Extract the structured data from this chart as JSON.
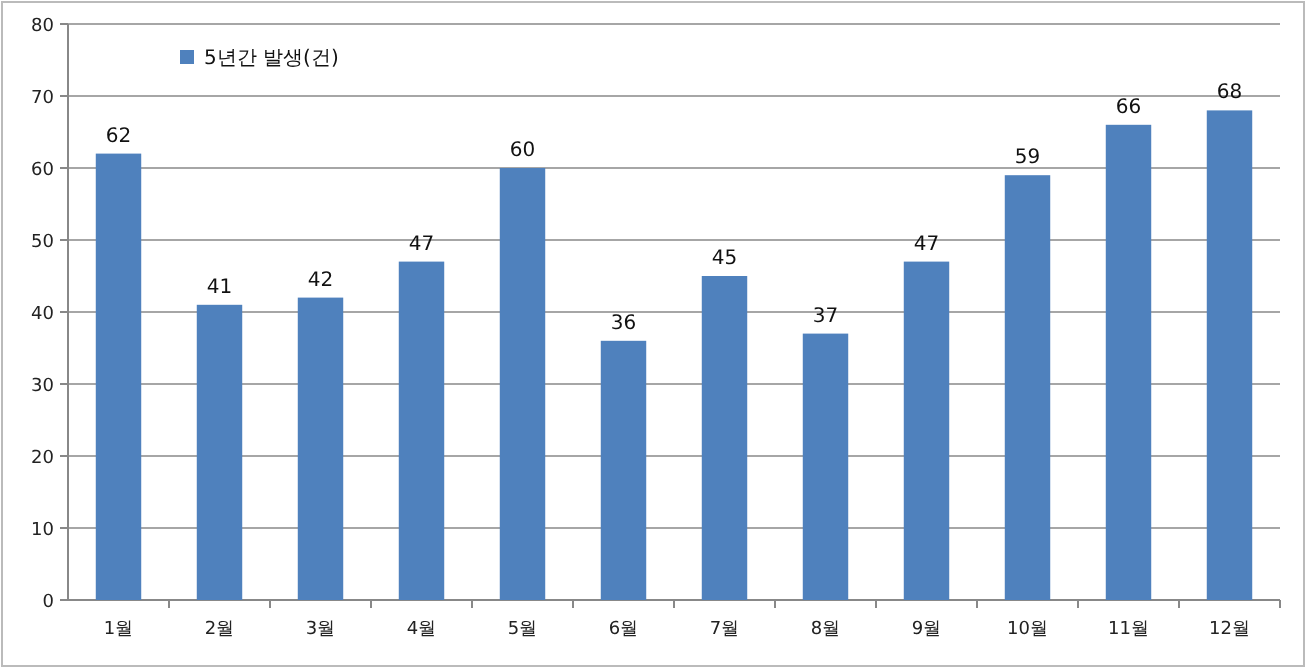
{
  "chart_data": {
    "type": "bar",
    "categories": [
      "1월",
      "2월",
      "3월",
      "4월",
      "5월",
      "6월",
      "7월",
      "8월",
      "9월",
      "10월",
      "11월",
      "12월"
    ],
    "series": [
      {
        "name": "5년간 발생(건)",
        "color": "#4f81bd",
        "values": [
          62,
          41,
          42,
          47,
          60,
          36,
          45,
          37,
          47,
          59,
          66,
          68
        ]
      }
    ],
    "ylim": [
      0,
      80
    ],
    "yticks": [
      0,
      10,
      20,
      30,
      40,
      50,
      60,
      70,
      80
    ],
    "grid": "y",
    "legend": "top left",
    "data_labels": true
  }
}
